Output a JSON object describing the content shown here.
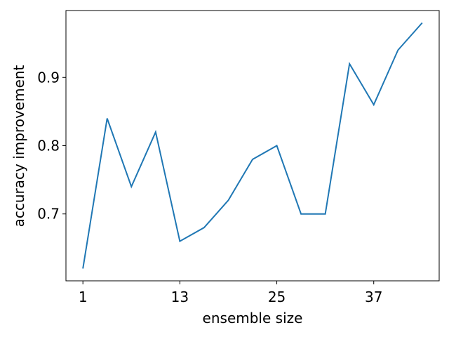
{
  "chart_data": {
    "type": "line",
    "x_label": "ensemble size",
    "y_label": "accuracy improvement",
    "x": [
      1,
      4,
      7,
      10,
      13,
      16,
      19,
      22,
      25,
      28,
      31,
      34,
      37,
      40,
      43
    ],
    "series": [
      {
        "color": "#1f77b4",
        "values": [
          0.62,
          0.84,
          0.74,
          0.82,
          0.66,
          0.68,
          0.72,
          0.78,
          0.8,
          0.7,
          0.7,
          0.92,
          0.86,
          0.94,
          0.98
        ]
      }
    ],
    "xlim": [
      -1.1,
      45.1
    ],
    "xticks": [
      1,
      13,
      25,
      37
    ],
    "ylim": [
      0.602,
      0.998
    ],
    "yticks": [
      0.7,
      0.8,
      0.9
    ]
  }
}
